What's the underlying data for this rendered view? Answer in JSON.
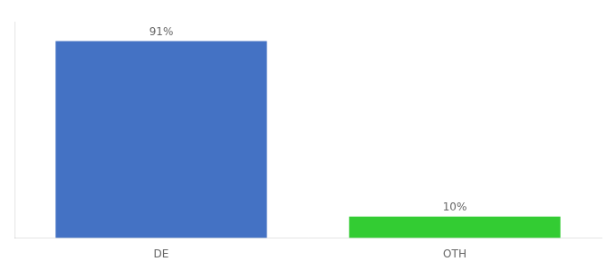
{
  "chart_data": {
    "type": "bar",
    "categories": [
      "DE",
      "OTH"
    ],
    "values": [
      91,
      10
    ],
    "value_labels": [
      "91%",
      "10%"
    ],
    "colors": [
      "#4472c4",
      "#33cc33"
    ],
    "ylim": [
      0,
      100
    ],
    "data_labels": true,
    "tick_labels": "x",
    "grid": false
  }
}
